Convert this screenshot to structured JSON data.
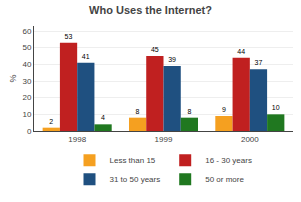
{
  "chart_data": {
    "type": "bar",
    "title": "Who Uses the Internet?",
    "ylabel": "%",
    "categories": [
      "1998",
      "1999",
      "2000"
    ],
    "series": [
      {
        "name": "Less than 15",
        "color": "#F5A020",
        "values": [
          2,
          8,
          9
        ]
      },
      {
        "name": "16 - 30 years",
        "color": "#C02020",
        "values": [
          53,
          45,
          44
        ]
      },
      {
        "name": "31 to 50 years",
        "color": "#1F5080",
        "values": [
          41,
          39,
          37
        ]
      },
      {
        "name": "50 or more",
        "color": "#207820",
        "values": [
          4,
          8,
          10
        ]
      }
    ],
    "ylim": [
      0,
      63
    ],
    "yticks": [
      0,
      10,
      20,
      30,
      40,
      50,
      60
    ],
    "grid": true,
    "legend": "bottom",
    "data_labels": true
  }
}
